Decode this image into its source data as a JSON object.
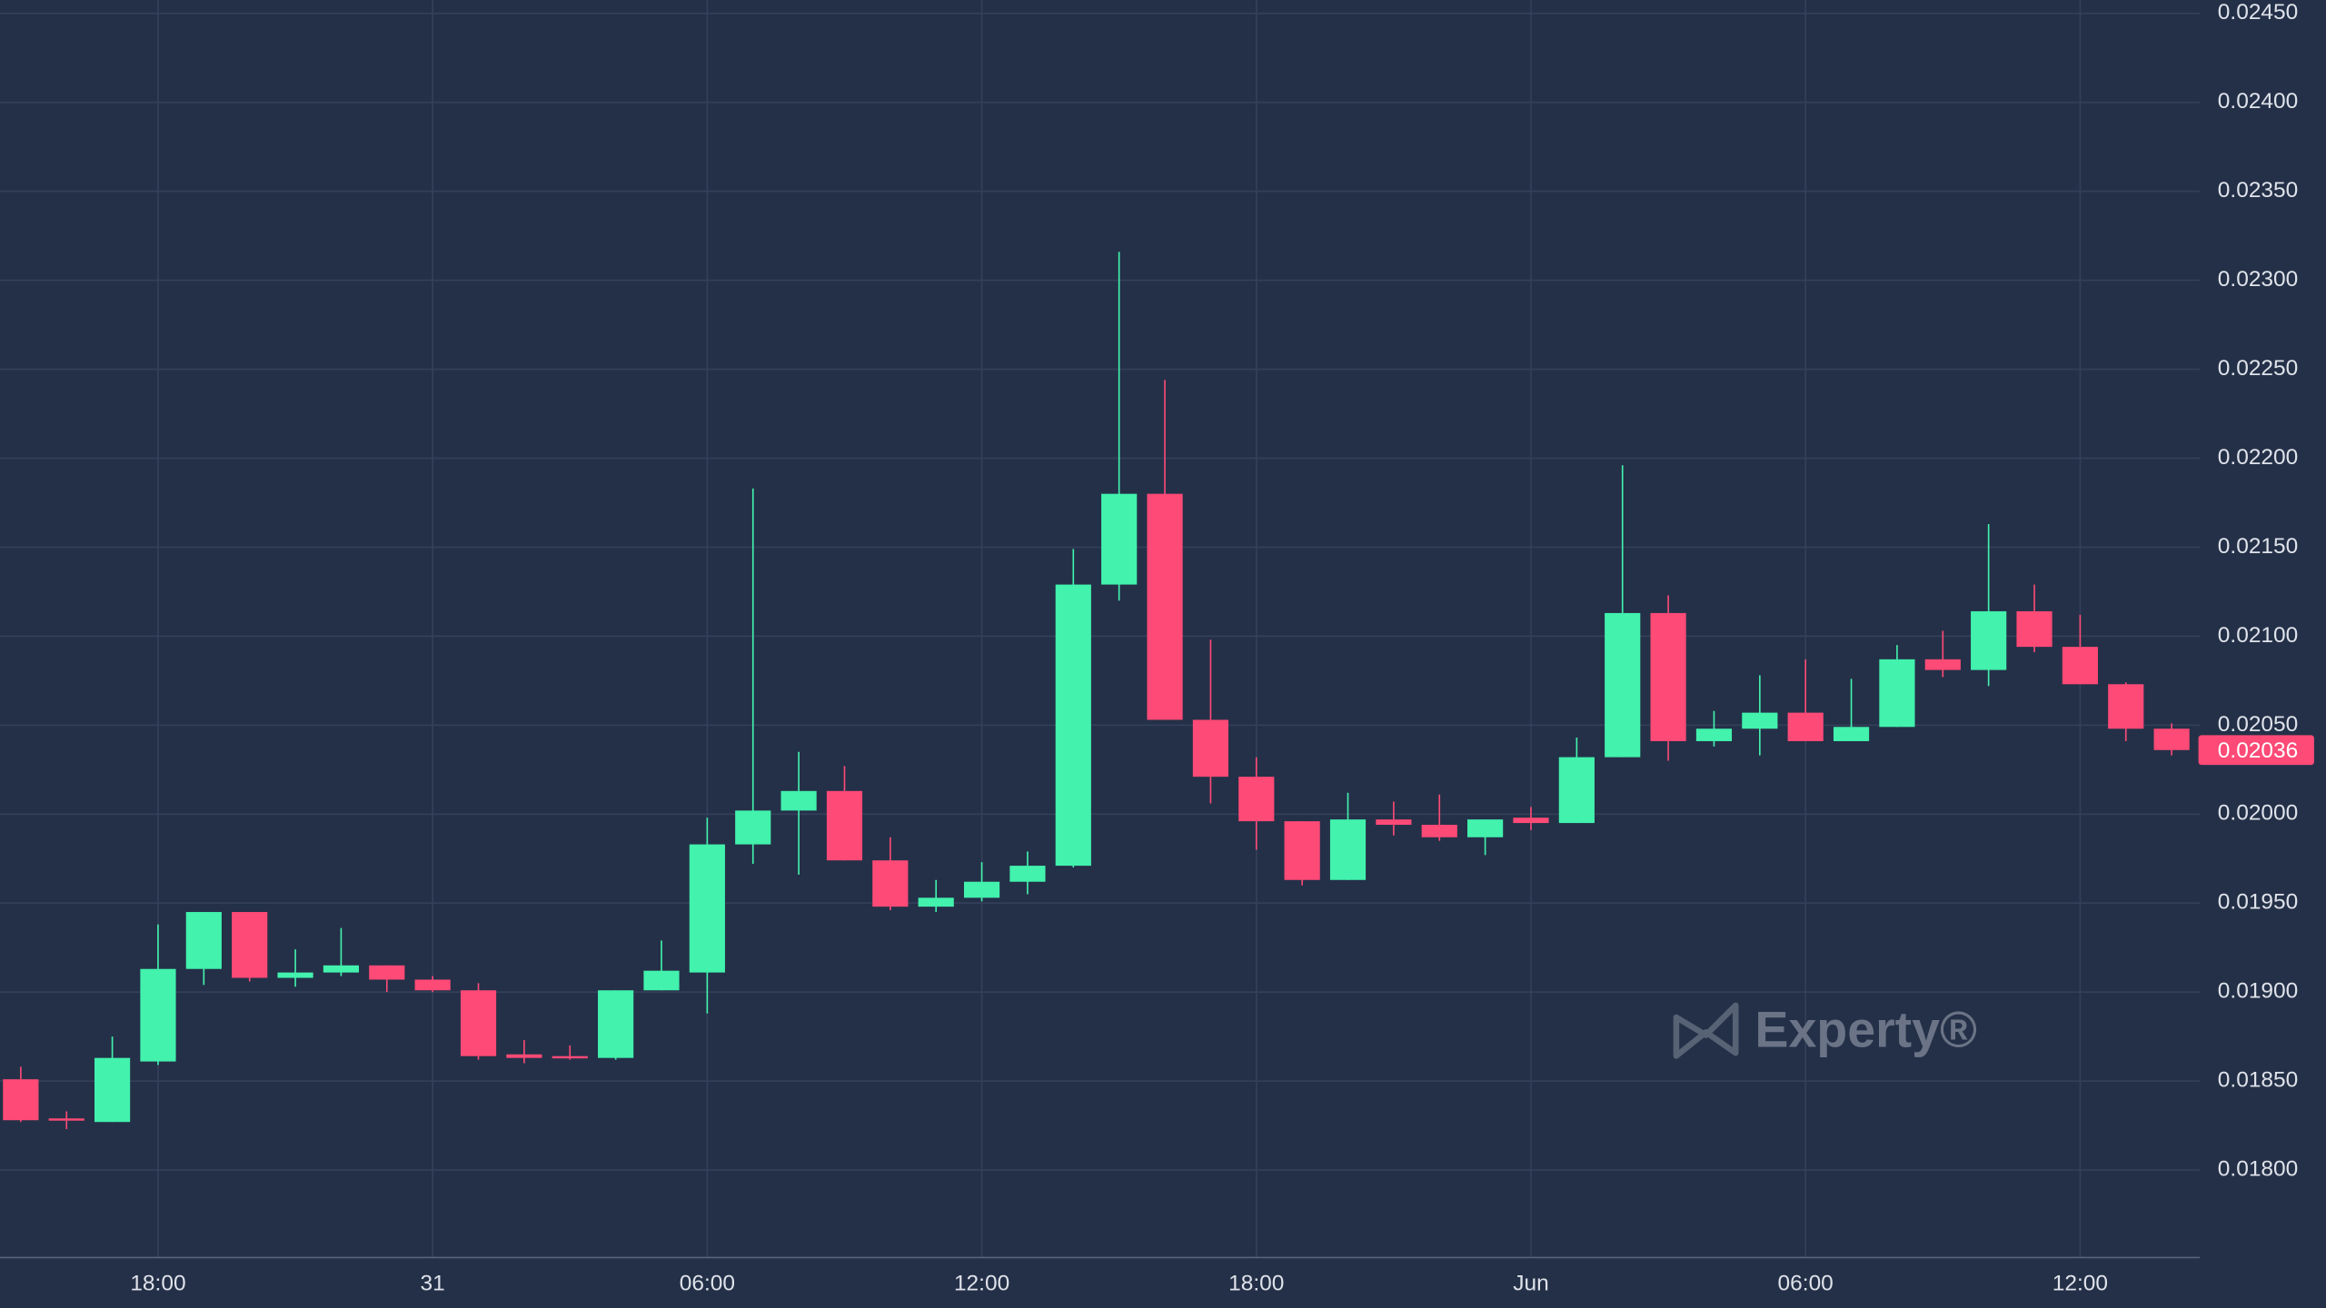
{
  "chart_data": {
    "type": "candlestick",
    "categories": [
      null,
      null,
      null,
      "18:00",
      null,
      null,
      null,
      null,
      null,
      "31",
      null,
      null,
      null,
      null,
      null,
      "06:00",
      null,
      null,
      null,
      null,
      null,
      "12:00",
      null,
      null,
      null,
      null,
      null,
      "18:00",
      null,
      null,
      null,
      null,
      null,
      "Jun",
      null,
      null,
      null,
      null,
      null,
      "06:00",
      null,
      null,
      null,
      null,
      null,
      "12:00",
      null,
      null
    ],
    "open": [
      0.01851,
      0.01829,
      0.01827,
      0.01861,
      0.01913,
      0.01945,
      0.01908,
      0.01911,
      0.01915,
      0.01907,
      0.01901,
      0.01865,
      0.01864,
      0.01863,
      0.01901,
      0.01911,
      0.01983,
      0.02002,
      0.02013,
      0.01974,
      0.01948,
      0.01953,
      0.01962,
      0.01971,
      0.02129,
      0.0218,
      0.02053,
      0.02021,
      0.01996,
      0.01963,
      0.01997,
      0.01994,
      0.01987,
      0.01998,
      0.01995,
      0.02032,
      0.02113,
      0.02041,
      0.02048,
      0.02057,
      0.02041,
      0.02049,
      0.02087,
      0.02081,
      0.02114,
      0.02094,
      0.02073,
      0.02048
    ],
    "high": [
      0.01858,
      0.01833,
      0.01875,
      0.01938,
      0.01945,
      0.01945,
      0.01924,
      0.01936,
      0.01915,
      0.01909,
      0.01905,
      0.01873,
      0.0187,
      0.01901,
      0.01929,
      0.01998,
      0.02183,
      0.02035,
      0.02027,
      0.01987,
      0.01963,
      0.01973,
      0.01979,
      0.02149,
      0.02316,
      0.02244,
      0.02098,
      0.02032,
      0.01996,
      0.02012,
      0.02007,
      0.02011,
      0.01997,
      0.02004,
      0.02043,
      0.02196,
      0.02123,
      0.02058,
      0.02078,
      0.02087,
      0.02076,
      0.02095,
      0.02103,
      0.02163,
      0.02129,
      0.02112,
      0.02074,
      0.02051
    ],
    "low": [
      0.01827,
      0.01823,
      0.01827,
      0.01859,
      0.01904,
      0.01906,
      0.01903,
      0.01909,
      0.019,
      0.019,
      0.01862,
      0.0186,
      0.01862,
      0.01862,
      0.01901,
      0.01888,
      0.01972,
      0.01966,
      0.01974,
      0.01946,
      0.01945,
      0.01951,
      0.01955,
      0.0197,
      0.0212,
      0.02053,
      0.02006,
      0.0198,
      0.0196,
      0.01963,
      0.01988,
      0.01985,
      0.01977,
      0.01991,
      0.01995,
      0.02032,
      0.0203,
      0.02038,
      0.02033,
      0.02041,
      0.02041,
      0.02049,
      0.02077,
      0.02072,
      0.02091,
      0.02073,
      0.02041,
      0.02033
    ],
    "close": [
      0.01828,
      0.01828,
      0.01863,
      0.01913,
      0.01945,
      0.01908,
      0.01911,
      0.01915,
      0.01907,
      0.01901,
      0.01864,
      0.01863,
      0.01863,
      0.01901,
      0.01912,
      0.01983,
      0.02002,
      0.02013,
      0.01974,
      0.01948,
      0.01953,
      0.01962,
      0.01971,
      0.02129,
      0.0218,
      0.02053,
      0.02021,
      0.01996,
      0.01963,
      0.01997,
      0.01994,
      0.01987,
      0.01997,
      0.01995,
      0.02032,
      0.02113,
      0.02041,
      0.02048,
      0.02057,
      0.02041,
      0.02049,
      0.02087,
      0.02081,
      0.02114,
      0.02094,
      0.02073,
      0.02048,
      0.02036
    ],
    "up_color": "#42f2ad",
    "down_color": "#fd4a76",
    "ylim": [
      0.017508,
      0.024575
    ],
    "yticks": [
      {
        "value": 0.018,
        "label": "0.01800"
      },
      {
        "value": 0.0185,
        "label": "0.01850"
      },
      {
        "value": 0.019,
        "label": "0.01900"
      },
      {
        "value": 0.0195,
        "label": "0.01950"
      },
      {
        "value": 0.02,
        "label": "0.02000"
      },
      {
        "value": 0.0205,
        "label": "0.02050"
      },
      {
        "value": 0.021,
        "label": "0.02100"
      },
      {
        "value": 0.0215,
        "label": "0.02150"
      },
      {
        "value": 0.022,
        "label": "0.02200"
      },
      {
        "value": 0.0225,
        "label": "0.02250"
      },
      {
        "value": 0.023,
        "label": "0.02300"
      },
      {
        "value": 0.0235,
        "label": "0.02350"
      },
      {
        "value": 0.024,
        "label": "0.02400"
      },
      {
        "value": 0.0245,
        "label": "0.02450"
      }
    ],
    "grid": true,
    "last_value": 0.02036,
    "watermark": "Experty®"
  }
}
